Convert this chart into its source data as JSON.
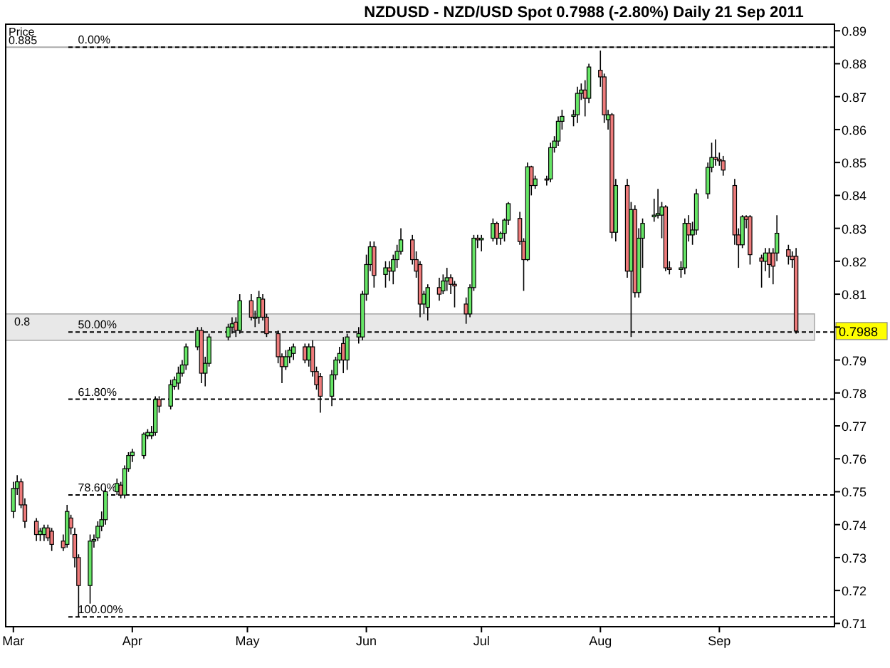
{
  "chart_data": {
    "type": "candlestick",
    "title": "NZDUSD - NZD/USD Spot    0.7988 (-2.80%)    Daily  21 Sep 2011",
    "ylabel": "Price",
    "xlim": [
      "2011-02-27",
      "2011-10-01"
    ],
    "xticks": [
      {
        "value": "2011-03-01",
        "label": "Mar"
      },
      {
        "value": "2011-04-01",
        "label": "Apr"
      },
      {
        "value": "2011-05-01",
        "label": "May"
      },
      {
        "value": "2011-06-01",
        "label": "Jun"
      },
      {
        "value": "2011-07-01",
        "label": "Jul"
      },
      {
        "value": "2011-08-01",
        "label": "Aug"
      },
      {
        "value": "2011-09-01",
        "label": "Sep"
      }
    ],
    "ylim": [
      0.709,
      0.892
    ],
    "yticks": [
      0.71,
      0.72,
      0.73,
      0.74,
      0.75,
      0.76,
      0.77,
      0.78,
      0.79,
      {
        "value": 0.8,
        "label": null
      },
      0.81,
      0.82,
      0.83,
      0.84,
      0.85,
      0.86,
      0.87,
      0.88,
      0.89
    ],
    "colors": [
      "#66e666",
      "#66e666",
      "#ee7b7b",
      "#ee7b7b",
      "#ee7b7b",
      "#66e666",
      "#66e666",
      "#ee7b7b",
      "#ee7b7b",
      "#ee7b7b",
      "#66e666",
      "#ee7b7b",
      "#ee7b7b",
      "#ee7b7b",
      "#66e666",
      "#66e666",
      "#66e666",
      "#66e666",
      "#66e666",
      "#66e666",
      "#ee7b7b",
      "#66e666",
      "#66e666",
      "#66e666",
      "#66e666",
      "#66e666",
      "#66e666",
      "#66e666",
      "#ee7b7b",
      "#66e666",
      "#66e666",
      "#66e666",
      "#66e666",
      "#66e666",
      "#66e666",
      "#ee7b7b",
      "#66e666",
      "#66e666",
      "#66e666",
      "#66e666",
      "#ee7b7b",
      "#66e666",
      "#ee7b7b",
      "#66e666",
      "#66e666",
      "#ee7b7b",
      "#ee7b7b",
      "#ee7b7b",
      "#ee7b7b",
      "#66e666",
      "#66e666",
      "#66e666",
      "#ee7b7b",
      "#66e666",
      "#ee7b7b",
      "#ee7b7b",
      "#ee7b7b",
      "#66e666",
      "#66e666",
      "#66e666",
      "#ee7b7b",
      "#66e666",
      "#66e666",
      "#66e666",
      "#66e666",
      "#66e666",
      "#ee7b7b",
      "#66e666",
      "#ee7b7b",
      "#66e666",
      "#66e666",
      "#66e666",
      "#ee7b7b",
      "#ee7b7b",
      "#ee7b7b",
      "#66e666",
      "#66e666",
      "#ee7b7b",
      "#66e666",
      "#66e666",
      "#ee7b7b",
      "#ee7b7b",
      "#ee7b7b",
      "#66e666",
      "#66e666",
      "#ee7b7b",
      "#66e666",
      "#66e666",
      "#ee7b7b",
      "#66e666",
      "#66e666",
      "#66e666",
      "#ee7b7b",
      "#ee7b7b",
      "#66e666",
      "#ee7b7b",
      "#66e666",
      "#ee7b7b",
      "#66e666",
      "#66e666",
      "#66e666",
      "#66e666",
      "#66e666",
      "#66e666",
      "#66e666",
      "#ee7b7b",
      "#66e666",
      "#ee7b7b",
      "#ee7b7b",
      "#66e666",
      "#ee7b7b",
      "#66e666",
      "#ee7b7b",
      "#66e666",
      "#ee7b7b",
      "#66e666",
      "#66e666",
      "#66e666",
      "#66e666",
      "#66e666",
      "#ee7b7b",
      "#ee7b7b",
      "#66e666",
      "#66e666",
      "#ee7b7b",
      "#66e666",
      "#66e666",
      "#66e666",
      "#66e666",
      "#ee7b7b",
      "#ee7b7b",
      "#ee7b7b",
      "#ee7b7b",
      "#ee7b7b",
      "#66e666",
      "#ee7b7b",
      "#ee7b7b",
      "#ee7b7b",
      "#66e666",
      "#ee7b7b",
      "#ee7b7b",
      "#66e666",
      "#ee7b7b",
      "#ee7b7b",
      "#ee7b7b"
    ],
    "annotations": [
      {
        "text": "0.00%",
        "x": "2011-03-16",
        "y": 0.885
      },
      {
        "text": "50.00%",
        "x": "2011-03-16",
        "y": 0.7985
      },
      {
        "text": "61.80%",
        "x": "2011-03-16",
        "y": 0.7781
      },
      {
        "text": "78.60%",
        "x": "2011-03-16",
        "y": 0.749
      },
      {
        "text": "100.00%",
        "x": "2011-03-16",
        "y": 0.712
      },
      "0.7988"
    ],
    "ref_lines": [
      {
        "axis": "y",
        "value": 0.885,
        "label": "0.885",
        "color": "#aaaaaa",
        "line_style": "solid"
      },
      {
        "axis": "y",
        "value": 0.885,
        "color": "#000000",
        "line_style": "dashed"
      },
      {
        "axis": "y",
        "value": 0.7985,
        "color": "#000000",
        "line_style": "dashed"
      },
      {
        "axis": "y",
        "value": 0.7781,
        "color": "#000000",
        "line_style": "dashed"
      },
      {
        "axis": "y",
        "value": 0.749,
        "color": "#000000",
        "line_style": "dashed"
      },
      {
        "axis": "y",
        "value": 0.712,
        "color": "#000000",
        "line_style": "dashed"
      }
    ],
    "bands": [
      {
        "axis": "y",
        "from": 0.796,
        "to": 0.804,
        "label": "0.8",
        "color": "#e8e8e8"
      }
    ],
    "x": [
      "2011-03-01",
      "2011-03-02",
      "2011-03-03",
      "2011-03-04",
      "2011-03-07",
      "2011-03-08",
      "2011-03-09",
      "2011-03-10",
      "2011-03-11",
      "2011-03-14",
      "2011-03-15",
      "2011-03-16",
      "2011-03-17",
      "2011-03-18",
      "2011-03-21",
      "2011-03-22",
      "2011-03-23",
      "2011-03-24",
      "2011-03-25",
      "2011-03-28",
      "2011-03-29",
      "2011-03-30",
      "2011-03-31",
      "2011-04-01",
      "2011-04-04",
      "2011-04-05",
      "2011-04-06",
      "2011-04-07",
      "2011-04-08",
      "2011-04-11",
      "2011-04-12",
      "2011-04-13",
      "2011-04-14",
      "2011-04-15",
      "2011-04-18",
      "2011-04-19",
      "2011-04-20",
      "2011-04-21",
      "2011-04-26",
      "2011-04-27",
      "2011-04-28",
      "2011-04-29",
      "2011-05-02",
      "2011-05-03",
      "2011-05-04",
      "2011-05-05",
      "2011-05-06",
      "2011-05-09",
      "2011-05-10",
      "2011-05-11",
      "2011-05-12",
      "2011-05-13",
      "2011-05-16",
      "2011-05-17",
      "2011-05-18",
      "2011-05-19",
      "2011-05-20",
      "2011-05-23",
      "2011-05-24",
      "2011-05-25",
      "2011-05-26",
      "2011-05-27",
      "2011-05-30",
      "2011-05-31",
      "2011-06-01",
      "2011-06-02",
      "2011-06-03",
      "2011-06-06",
      "2011-06-07",
      "2011-06-08",
      "2011-06-09",
      "2011-06-10",
      "2011-06-13",
      "2011-06-14",
      "2011-06-15",
      "2011-06-16",
      "2011-06-17",
      "2011-06-20",
      "2011-06-21",
      "2011-06-22",
      "2011-06-23",
      "2011-06-24",
      "2011-06-27",
      "2011-06-28",
      "2011-06-29",
      "2011-06-30",
      "2011-07-01",
      "2011-07-04",
      "2011-07-05",
      "2011-07-06",
      "2011-07-07",
      "2011-07-08",
      "2011-07-11",
      "2011-07-12",
      "2011-07-13",
      "2011-07-14",
      "2011-07-15",
      "2011-07-18",
      "2011-07-19",
      "2011-07-20",
      "2011-07-21",
      "2011-07-22",
      "2011-07-25",
      "2011-07-26",
      "2011-07-27",
      "2011-07-28",
      "2011-07-29",
      "2011-08-01",
      "2011-08-02",
      "2011-08-03",
      "2011-08-04",
      "2011-08-05",
      "2011-08-08",
      "2011-08-09",
      "2011-08-10",
      "2011-08-11",
      "2011-08-12",
      "2011-08-15",
      "2011-08-16",
      "2011-08-17",
      "2011-08-18",
      "2011-08-19",
      "2011-08-22",
      "2011-08-23",
      "2011-08-24",
      "2011-08-25",
      "2011-08-26",
      "2011-08-29",
      "2011-08-30",
      "2011-08-31",
      "2011-09-01",
      "2011-09-02",
      "2011-09-05",
      "2011-09-06",
      "2011-09-07",
      "2011-09-08",
      "2011-09-09",
      "2011-09-12",
      "2011-09-13",
      "2011-09-14",
      "2011-09-15",
      "2011-09-16",
      "2011-09-19",
      "2011-09-20",
      "2011-09-21"
    ],
    "ohlc": [
      [
        0.744,
        0.753,
        0.742,
        0.751
      ],
      [
        0.751,
        0.755,
        0.749,
        0.753
      ],
      [
        0.753,
        0.754,
        0.745,
        0.746
      ],
      [
        0.746,
        0.748,
        0.739,
        0.741
      ],
      [
        0.741,
        0.742,
        0.735,
        0.737
      ],
      [
        0.737,
        0.739,
        0.735,
        0.738
      ],
      [
        0.737,
        0.74,
        0.735,
        0.739
      ],
      [
        0.739,
        0.74,
        0.735,
        0.736
      ],
      [
        0.738,
        0.739,
        0.732,
        0.734
      ],
      [
        0.735,
        0.737,
        0.732,
        0.733
      ],
      [
        0.734,
        0.746,
        0.733,
        0.744
      ],
      [
        0.742,
        0.743,
        0.737,
        0.739
      ],
      [
        0.737,
        0.739,
        0.727,
        0.73
      ],
      [
        0.73,
        0.731,
        0.712,
        0.7215
      ],
      [
        0.7215,
        0.737,
        0.716,
        0.735
      ],
      [
        0.735,
        0.737,
        0.733,
        0.7355
      ],
      [
        0.736,
        0.741,
        0.735,
        0.7395
      ],
      [
        0.7395,
        0.744,
        0.738,
        0.7415
      ],
      [
        0.7415,
        0.751,
        0.74,
        0.75
      ],
      [
        0.75,
        0.754,
        0.749,
        0.7525
      ],
      [
        0.752,
        0.753,
        0.748,
        0.749
      ],
      [
        0.749,
        0.758,
        0.748,
        0.757
      ],
      [
        0.757,
        0.762,
        0.756,
        0.761
      ],
      [
        0.761,
        0.763,
        0.759,
        0.762
      ],
      [
        0.761,
        0.768,
        0.76,
        0.7675
      ],
      [
        0.767,
        0.769,
        0.766,
        0.768
      ],
      [
        0.767,
        0.77,
        0.766,
        0.768
      ],
      [
        0.768,
        0.779,
        0.767,
        0.778
      ],
      [
        0.778,
        0.779,
        0.774,
        0.776
      ],
      [
        0.776,
        0.784,
        0.775,
        0.7825
      ],
      [
        0.782,
        0.785,
        0.781,
        0.784
      ],
      [
        0.783,
        0.788,
        0.781,
        0.786
      ],
      [
        0.786,
        0.79,
        0.785,
        0.7885
      ],
      [
        0.7885,
        0.795,
        0.787,
        0.794
      ],
      [
        0.794,
        0.8,
        0.793,
        0.799
      ],
      [
        0.799,
        0.8,
        0.783,
        0.786
      ],
      [
        0.786,
        0.791,
        0.782,
        0.789
      ],
      [
        0.789,
        0.798,
        0.788,
        0.797
      ],
      [
        0.797,
        0.801,
        0.796,
        0.8
      ],
      [
        0.8,
        0.803,
        0.798,
        0.801
      ],
      [
        0.8015,
        0.803,
        0.797,
        0.799
      ],
      [
        0.799,
        0.81,
        0.798,
        0.808
      ],
      [
        0.808,
        0.81,
        0.802,
        0.803
      ],
      [
        0.803,
        0.805,
        0.8,
        0.803
      ],
      [
        0.803,
        0.811,
        0.801,
        0.809
      ],
      [
        0.8085,
        0.81,
        0.802,
        0.803
      ],
      [
        0.803,
        0.804,
        0.797,
        0.798
      ],
      [
        0.798,
        0.799,
        0.789,
        0.791
      ],
      [
        0.791,
        0.792,
        0.783,
        0.788
      ],
      [
        0.788,
        0.793,
        0.787,
        0.791
      ],
      [
        0.791,
        0.794,
        0.789,
        0.793
      ],
      [
        0.792,
        0.795,
        0.79,
        0.794
      ],
      [
        0.794,
        0.795,
        0.789,
        0.79
      ],
      [
        0.79,
        0.795,
        0.788,
        0.794
      ],
      [
        0.794,
        0.796,
        0.785,
        0.7865
      ],
      [
        0.7865,
        0.788,
        0.781,
        0.7825
      ],
      [
        0.785,
        0.786,
        0.774,
        0.779
      ],
      [
        0.779,
        0.787,
        0.776,
        0.7855
      ],
      [
        0.7855,
        0.791,
        0.784,
        0.79
      ],
      [
        0.79,
        0.794,
        0.789,
        0.792
      ],
      [
        0.795,
        0.797,
        0.786,
        0.79
      ],
      [
        0.79,
        0.798,
        0.787,
        0.797
      ],
      [
        0.797,
        0.8,
        0.795,
        0.798
      ],
      [
        0.797,
        0.811,
        0.796,
        0.81
      ],
      [
        0.81,
        0.822,
        0.808,
        0.819
      ],
      [
        0.819,
        0.826,
        0.817,
        0.8244
      ],
      [
        0.8244,
        0.826,
        0.812,
        0.8157
      ],
      [
        0.816,
        0.82,
        0.812,
        0.818
      ],
      [
        0.818,
        0.82,
        0.814,
        0.817
      ],
      [
        0.817,
        0.822,
        0.813,
        0.8205
      ],
      [
        0.8205,
        0.825,
        0.818,
        0.823
      ],
      [
        0.823,
        0.83,
        0.822,
        0.8265
      ],
      [
        0.8265,
        0.828,
        0.819,
        0.8205
      ],
      [
        0.8205,
        0.823,
        0.815,
        0.817
      ],
      [
        0.819,
        0.82,
        0.803,
        0.807
      ],
      [
        0.807,
        0.811,
        0.804,
        0.81
      ],
      [
        0.806,
        0.813,
        0.802,
        0.812
      ],
      [
        0.812,
        0.815,
        0.808,
        0.81
      ],
      [
        0.811,
        0.816,
        0.81,
        0.814
      ],
      [
        0.814,
        0.818,
        0.811,
        0.815
      ],
      [
        0.815,
        0.816,
        0.81,
        0.813
      ],
      [
        0.813,
        0.814,
        0.806,
        0.8125
      ],
      [
        0.807,
        0.809,
        0.801,
        0.804
      ],
      [
        0.804,
        0.813,
        0.803,
        0.812
      ],
      [
        0.812,
        0.828,
        0.811,
        0.827
      ],
      [
        0.827,
        0.828,
        0.824,
        0.8265
      ],
      [
        0.8265,
        0.828,
        0.823,
        0.827
      ],
      [
        0.827,
        0.833,
        0.826,
        0.8315
      ],
      [
        0.8315,
        0.832,
        0.825,
        0.827
      ],
      [
        0.827,
        0.829,
        0.825,
        0.8285
      ],
      [
        0.8285,
        0.833,
        0.826,
        0.8325
      ],
      [
        0.8325,
        0.838,
        0.831,
        0.8375
      ],
      [
        0.833,
        0.835,
        0.825,
        0.826
      ],
      [
        0.826,
        0.827,
        0.811,
        0.8205
      ],
      [
        0.8205,
        0.85,
        0.82,
        0.8487
      ],
      [
        0.8487,
        0.849,
        0.84,
        0.843
      ],
      [
        0.843,
        0.846,
        0.842,
        0.845
      ],
      [
        0.845,
        0.846,
        0.843,
        0.8448
      ],
      [
        0.845,
        0.856,
        0.844,
        0.8545
      ],
      [
        0.8545,
        0.858,
        0.853,
        0.8565
      ],
      [
        0.8565,
        0.864,
        0.855,
        0.8625
      ],
      [
        0.8625,
        0.866,
        0.86,
        0.864
      ],
      [
        0.864,
        0.866,
        0.861,
        0.8645
      ],
      [
        0.8645,
        0.873,
        0.862,
        0.871
      ],
      [
        0.871,
        0.874,
        0.869,
        0.872
      ],
      [
        0.872,
        0.875,
        0.864,
        0.8695
      ],
      [
        0.8695,
        0.88,
        0.868,
        0.879
      ],
      [
        0.878,
        0.884,
        0.873,
        0.876
      ],
      [
        0.876,
        0.877,
        0.862,
        0.8645
      ],
      [
        0.863,
        0.866,
        0.86,
        0.8645
      ],
      [
        0.8645,
        0.865,
        0.827,
        0.8288
      ],
      [
        0.8288,
        0.845,
        0.826,
        0.843
      ],
      [
        0.843,
        0.845,
        0.815,
        0.817
      ],
      [
        0.817,
        0.838,
        0.797,
        0.8357
      ],
      [
        0.8357,
        0.837,
        0.809,
        0.8105
      ],
      [
        0.8105,
        0.83,
        0.809,
        0.827
      ],
      [
        0.827,
        0.833,
        0.818,
        0.8315
      ],
      [
        0.8335,
        0.839,
        0.832,
        0.834
      ],
      [
        0.834,
        0.842,
        0.833,
        0.8345
      ],
      [
        0.834,
        0.838,
        0.827,
        0.8365
      ],
      [
        0.8365,
        0.837,
        0.817,
        0.818
      ],
      [
        0.818,
        0.82,
        0.816,
        0.8175
      ],
      [
        0.8175,
        0.82,
        0.815,
        0.818
      ],
      [
        0.818,
        0.833,
        0.816,
        0.8315
      ],
      [
        0.8315,
        0.834,
        0.826,
        0.828
      ],
      [
        0.828,
        0.832,
        0.825,
        0.8295
      ],
      [
        0.8295,
        0.842,
        0.828,
        0.8405
      ],
      [
        0.8405,
        0.85,
        0.839,
        0.8485
      ],
      [
        0.8485,
        0.856,
        0.847,
        0.8515
      ],
      [
        0.8515,
        0.857,
        0.849,
        0.851
      ],
      [
        0.851,
        0.853,
        0.849,
        0.8505
      ],
      [
        0.8505,
        0.852,
        0.846,
        0.8477
      ],
      [
        0.843,
        0.845,
        0.825,
        0.828
      ],
      [
        0.828,
        0.83,
        0.818,
        0.825
      ],
      [
        0.825,
        0.834,
        0.824,
        0.8335
      ],
      [
        0.8335,
        0.834,
        0.83,
        0.8327
      ],
      [
        0.8335,
        0.834,
        0.819,
        0.822
      ],
      [
        0.821,
        0.822,
        0.812,
        0.82
      ],
      [
        0.82,
        0.824,
        0.817,
        0.8225
      ],
      [
        0.8225,
        0.824,
        0.815,
        0.819
      ],
      [
        0.8225,
        0.824,
        0.813,
        0.8185
      ],
      [
        0.8225,
        0.834,
        0.82,
        0.8285
      ],
      [
        0.8235,
        0.825,
        0.819,
        0.8215
      ],
      [
        0.8215,
        0.823,
        0.818,
        0.8205
      ],
      [
        0.8215,
        0.824,
        0.798,
        0.7988
      ]
    ]
  }
}
